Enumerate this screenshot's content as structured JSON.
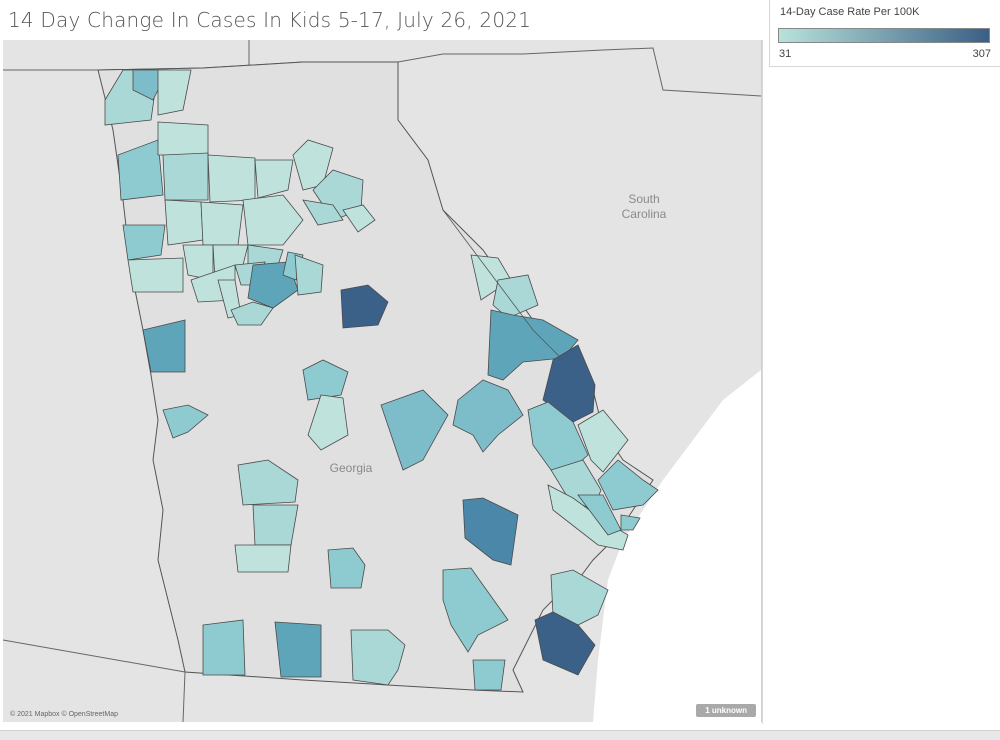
{
  "title": "14 Day Change In Cases In Kids 5-17, July 26, 2021",
  "legend": {
    "title": "14-Day Case Rate Per 100K",
    "min": "31",
    "max": "307",
    "color_low": "#b8e3da",
    "color_high": "#3a5f86"
  },
  "map_labels": {
    "state": "Georgia",
    "neighbor_line1": "South",
    "neighbor_line2": "Carolina"
  },
  "credit": "© 2021 Mapbox © OpenStreetMap",
  "unknown_badge": "1 unknown",
  "colors": {
    "c1": "#bfe3dc",
    "c2": "#a9d8d6",
    "c3": "#8ecbd1",
    "c4": "#7dbdca",
    "c5": "#5fa5ba",
    "c6": "#4a87a8",
    "c7": "#3b6189"
  }
}
